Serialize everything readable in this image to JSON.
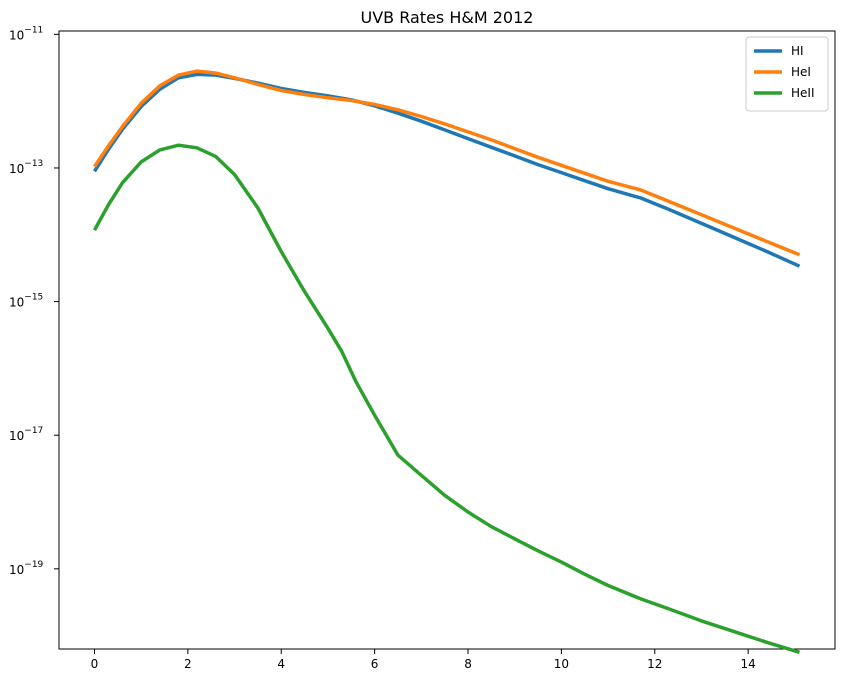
{
  "chart_data": {
    "type": "line",
    "title": "UVB Rates H&M 2012",
    "xlabel": "",
    "ylabel": "",
    "yscale": "log",
    "xlim": [
      -0.76,
      15.86
    ],
    "ylim_exp": [
      -20.2,
      -10.95
    ],
    "legend_position": "top-right",
    "grid": false,
    "x_ticks": [
      {
        "value": 0,
        "label": "0"
      },
      {
        "value": 2,
        "label": "2"
      },
      {
        "value": 4,
        "label": "4"
      },
      {
        "value": 6,
        "label": "6"
      },
      {
        "value": 8,
        "label": "8"
      },
      {
        "value": 10,
        "label": "10"
      },
      {
        "value": 12,
        "label": "12"
      },
      {
        "value": 14,
        "label": "14"
      }
    ],
    "y_ticks": [
      {
        "value": 1e-11,
        "base": "10",
        "exp": "−11"
      },
      {
        "value": 1e-13,
        "base": "10",
        "exp": "−13"
      },
      {
        "value": 1e-15,
        "base": "10",
        "exp": "−15"
      },
      {
        "value": 1e-17,
        "base": "10",
        "exp": "−17"
      },
      {
        "value": 1e-19,
        "base": "10",
        "exp": "−19"
      }
    ],
    "series": [
      {
        "name": "HI",
        "color": "#1f77b4",
        "x": [
          0,
          0.3,
          0.6,
          1.0,
          1.4,
          1.8,
          2.2,
          2.6,
          3.0,
          3.5,
          4.0,
          4.5,
          5.0,
          5.5,
          6.0,
          6.5,
          7.0,
          7.5,
          8.0,
          8.5,
          9.0,
          9.5,
          10.0,
          10.5,
          11.0,
          11.7,
          12.3,
          13.0,
          13.7,
          14.4,
          15.1
        ],
        "y_exp": [
          -13.05,
          -12.72,
          -12.42,
          -12.08,
          -11.82,
          -11.65,
          -11.6,
          -11.61,
          -11.66,
          -11.73,
          -11.81,
          -11.87,
          -11.92,
          -11.98,
          -12.07,
          -12.18,
          -12.3,
          -12.43,
          -12.56,
          -12.69,
          -12.82,
          -12.95,
          -13.07,
          -13.19,
          -13.31,
          -13.45,
          -13.62,
          -13.83,
          -14.04,
          -14.25,
          -14.47
        ]
      },
      {
        "name": "HeI",
        "color": "#ff7f0e",
        "x": [
          0,
          0.3,
          0.6,
          1.0,
          1.4,
          1.8,
          2.2,
          2.6,
          3.0,
          3.5,
          4.0,
          4.5,
          5.0,
          5.5,
          6.0,
          6.5,
          7.0,
          7.5,
          8.0,
          8.5,
          9.0,
          9.5,
          10.0,
          10.5,
          11.0,
          11.7,
          12.3,
          13.0,
          13.7,
          14.4,
          15.1
        ],
        "y_exp": [
          -12.98,
          -12.67,
          -12.38,
          -12.03,
          -11.77,
          -11.61,
          -11.55,
          -11.58,
          -11.65,
          -11.75,
          -11.84,
          -11.9,
          -11.95,
          -11.99,
          -12.05,
          -12.13,
          -12.23,
          -12.34,
          -12.46,
          -12.58,
          -12.71,
          -12.84,
          -12.96,
          -13.08,
          -13.2,
          -13.33,
          -13.5,
          -13.7,
          -13.9,
          -14.1,
          -14.3
        ]
      },
      {
        "name": "HeII",
        "color": "#2ca02c",
        "x": [
          0,
          0.3,
          0.6,
          1.0,
          1.4,
          1.8,
          2.2,
          2.6,
          3.0,
          3.5,
          4.0,
          4.5,
          5.0,
          5.3,
          5.6,
          6.0,
          6.5,
          7.0,
          7.5,
          8.0,
          8.5,
          9.0,
          9.5,
          10.0,
          10.5,
          11.0,
          11.7,
          12.3,
          13.0,
          13.7,
          14.4,
          15.1
        ],
        "y_exp": [
          -13.93,
          -13.55,
          -13.22,
          -12.91,
          -12.73,
          -12.66,
          -12.7,
          -12.83,
          -13.1,
          -13.6,
          -14.25,
          -14.85,
          -15.4,
          -15.75,
          -16.2,
          -16.7,
          -17.3,
          -17.6,
          -17.9,
          -18.15,
          -18.37,
          -18.55,
          -18.73,
          -18.9,
          -19.08,
          -19.25,
          -19.45,
          -19.6,
          -19.78,
          -19.94,
          -20.1,
          -20.25
        ]
      }
    ]
  }
}
